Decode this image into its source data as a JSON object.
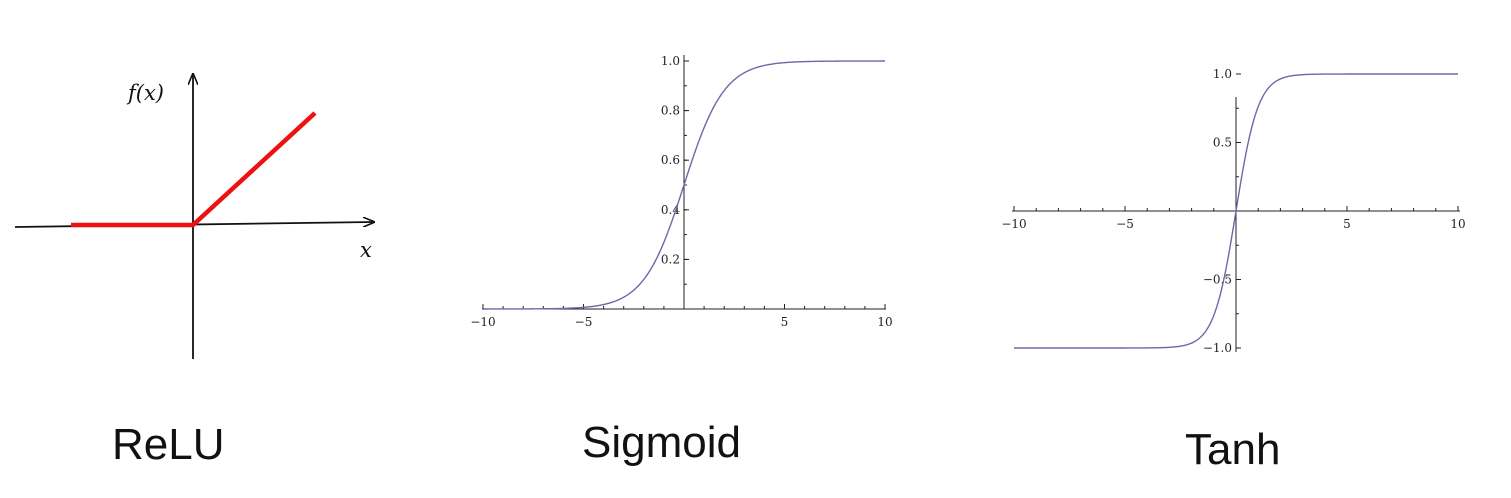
{
  "captions": {
    "relu": "ReLU",
    "sigmoid": "Sigmoid",
    "tanh": "Tanh"
  },
  "chart_data": [
    {
      "type": "line",
      "function": "relu",
      "title": "ReLU",
      "ylabel": "f(x)",
      "xlabel": "x",
      "series": [
        {
          "x": [
            -1,
            0,
            1
          ],
          "y": [
            0,
            0,
            1
          ]
        }
      ],
      "xlim": [
        -1.2,
        1.2
      ],
      "ylim": [
        -1.0,
        1.1
      ],
      "ticks": false,
      "grid": false,
      "color": "#ee1111"
    },
    {
      "type": "line",
      "function": "sigmoid",
      "title": "Sigmoid",
      "xlim": [
        -10,
        10
      ],
      "ylim": [
        0,
        1.0
      ],
      "xticks": [
        "-10",
        "-5",
        "5",
        "10"
      ],
      "yticks": [
        "0.2",
        "0.4",
        "0.6",
        "0.8",
        "1.0"
      ],
      "series": [
        {
          "x": [
            -10,
            -5,
            -2,
            -1,
            0,
            1,
            2,
            5,
            10
          ],
          "y": [
            4.54e-05,
            0.0067,
            0.119,
            0.269,
            0.5,
            0.731,
            0.881,
            0.9933,
            0.99995
          ]
        }
      ],
      "grid": false,
      "color": "#6a6aa8"
    },
    {
      "type": "line",
      "function": "tanh",
      "title": "Tanh",
      "xlim": [
        -10,
        10
      ],
      "ylim": [
        -1.0,
        1.0
      ],
      "xticks": [
        "-10",
        "-5",
        "5",
        "10"
      ],
      "yticks": [
        "-1.0",
        "-0.5",
        "0.5",
        "1.0"
      ],
      "series": [
        {
          "x": [
            -10,
            -5,
            -2,
            -1,
            0,
            1,
            2,
            5,
            10
          ],
          "y": [
            -1.0,
            -0.9999,
            -0.964,
            -0.762,
            0,
            0.762,
            0.964,
            0.9999,
            1.0
          ]
        }
      ],
      "grid": false,
      "color": "#6a6aa8"
    }
  ]
}
